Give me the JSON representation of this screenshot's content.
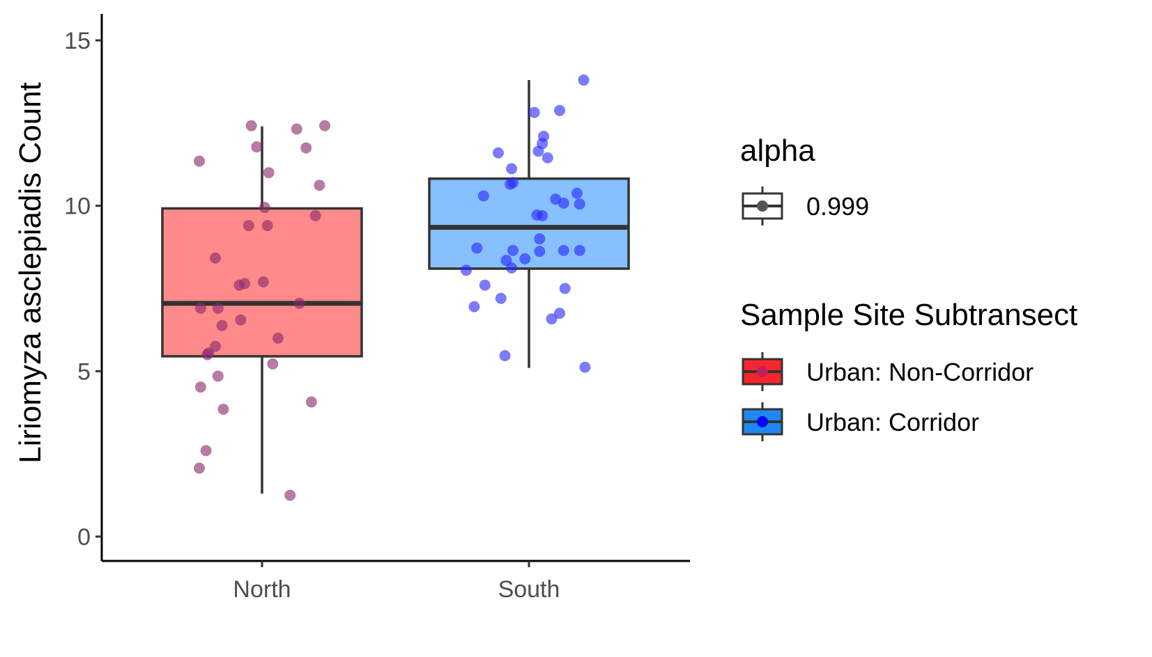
{
  "chart_data": {
    "type": "box",
    "title": "",
    "xlabel": "",
    "ylabel": "Liriomyza asclepiadis Count",
    "ylim": [
      -0.7,
      15.8
    ],
    "yticks": [
      0,
      5,
      10,
      15
    ],
    "ytick_labels": [
      "0",
      "5",
      "10",
      "15"
    ],
    "categories": [
      "North",
      "South"
    ],
    "grid": false,
    "legend_position": "right",
    "series": [
      {
        "name": "Urban: Non-Corridor",
        "category": "North",
        "box_fill": "#ff8a8a",
        "point_color": "#8b2a6b",
        "stats": {
          "whisker_low": 1.3,
          "q1": 5.45,
          "median": 7.05,
          "q3": 9.92,
          "whisker_high": 12.4
        },
        "points": [
          {
            "x": -0.235,
            "y": 11.35
          },
          {
            "x": -0.04,
            "y": 12.42
          },
          {
            "x": -0.02,
            "y": 11.78
          },
          {
            "x": 0.025,
            "y": 11.0
          },
          {
            "x": 0.13,
            "y": 12.32
          },
          {
            "x": 0.165,
            "y": 11.75
          },
          {
            "x": 0.235,
            "y": 12.42
          },
          {
            "x": 0.215,
            "y": 10.62
          },
          {
            "x": 0.01,
            "y": 9.95
          },
          {
            "x": -0.05,
            "y": 9.4
          },
          {
            "x": 0.02,
            "y": 9.4
          },
          {
            "x": 0.2,
            "y": 9.7
          },
          {
            "x": -0.175,
            "y": 8.42
          },
          {
            "x": -0.085,
            "y": 7.6
          },
          {
            "x": -0.065,
            "y": 7.65
          },
          {
            "x": 0.005,
            "y": 7.7
          },
          {
            "x": 0.14,
            "y": 7.05
          },
          {
            "x": -0.23,
            "y": 6.9
          },
          {
            "x": -0.165,
            "y": 6.9
          },
          {
            "x": -0.15,
            "y": 6.38
          },
          {
            "x": -0.08,
            "y": 6.55
          },
          {
            "x": 0.06,
            "y": 6.0
          },
          {
            "x": -0.175,
            "y": 5.75
          },
          {
            "x": -0.205,
            "y": 5.5
          },
          {
            "x": -0.2,
            "y": 5.55
          },
          {
            "x": 0.04,
            "y": 5.22
          },
          {
            "x": -0.165,
            "y": 4.85
          },
          {
            "x": -0.23,
            "y": 4.52
          },
          {
            "x": -0.145,
            "y": 3.85
          },
          {
            "x": 0.185,
            "y": 4.07
          },
          {
            "x": -0.21,
            "y": 2.6
          },
          {
            "x": -0.235,
            "y": 2.07
          },
          {
            "x": 0.105,
            "y": 1.25
          }
        ]
      },
      {
        "name": "Urban: Corridor",
        "category": "South",
        "box_fill": "#87c0ff",
        "point_color": "#2a2aff",
        "stats": {
          "whisker_low": 5.1,
          "q1": 8.1,
          "median": 9.35,
          "q3": 10.82,
          "whisker_high": 13.8
        },
        "points": [
          {
            "x": 0.205,
            "y": 13.8
          },
          {
            "x": 0.02,
            "y": 12.82
          },
          {
            "x": 0.115,
            "y": 12.88
          },
          {
            "x": 0.055,
            "y": 12.1
          },
          {
            "x": 0.05,
            "y": 11.88
          },
          {
            "x": 0.035,
            "y": 11.65
          },
          {
            "x": 0.07,
            "y": 11.45
          },
          {
            "x": -0.115,
            "y": 11.6
          },
          {
            "x": -0.065,
            "y": 11.12
          },
          {
            "x": -0.07,
            "y": 10.65
          },
          {
            "x": -0.06,
            "y": 10.7
          },
          {
            "x": -0.17,
            "y": 10.3
          },
          {
            "x": 0.1,
            "y": 10.2
          },
          {
            "x": 0.13,
            "y": 10.08
          },
          {
            "x": 0.18,
            "y": 10.38
          },
          {
            "x": 0.19,
            "y": 10.05
          },
          {
            "x": 0.03,
            "y": 9.72
          },
          {
            "x": 0.05,
            "y": 9.7
          },
          {
            "x": -0.195,
            "y": 8.72
          },
          {
            "x": 0.04,
            "y": 9.0
          },
          {
            "x": -0.06,
            "y": 8.65
          },
          {
            "x": 0.04,
            "y": 8.62
          },
          {
            "x": 0.13,
            "y": 8.65
          },
          {
            "x": 0.19,
            "y": 8.65
          },
          {
            "x": -0.085,
            "y": 8.35
          },
          {
            "x": -0.015,
            "y": 8.4
          },
          {
            "x": -0.065,
            "y": 8.12
          },
          {
            "x": -0.235,
            "y": 8.05
          },
          {
            "x": -0.165,
            "y": 7.6
          },
          {
            "x": 0.135,
            "y": 7.5
          },
          {
            "x": -0.105,
            "y": 7.2
          },
          {
            "x": -0.205,
            "y": 6.95
          },
          {
            "x": 0.115,
            "y": 6.75
          },
          {
            "x": 0.085,
            "y": 6.58
          },
          {
            "x": -0.09,
            "y": 5.47
          },
          {
            "x": 0.21,
            "y": 5.12
          }
        ]
      }
    ]
  },
  "legend": {
    "alpha_title": "alpha",
    "alpha_items": [
      {
        "label": "0.999",
        "fill": "#ffffff",
        "dot": "#555555"
      }
    ],
    "site_title": "Sample Site Subtransect",
    "site_items": [
      {
        "label": "Urban: Non-Corridor",
        "fill": "#f5262d",
        "dot": "#c0205e"
      },
      {
        "label": "Urban: Corridor",
        "fill": "#1e88f0",
        "dot": "#0000ff"
      }
    ]
  }
}
